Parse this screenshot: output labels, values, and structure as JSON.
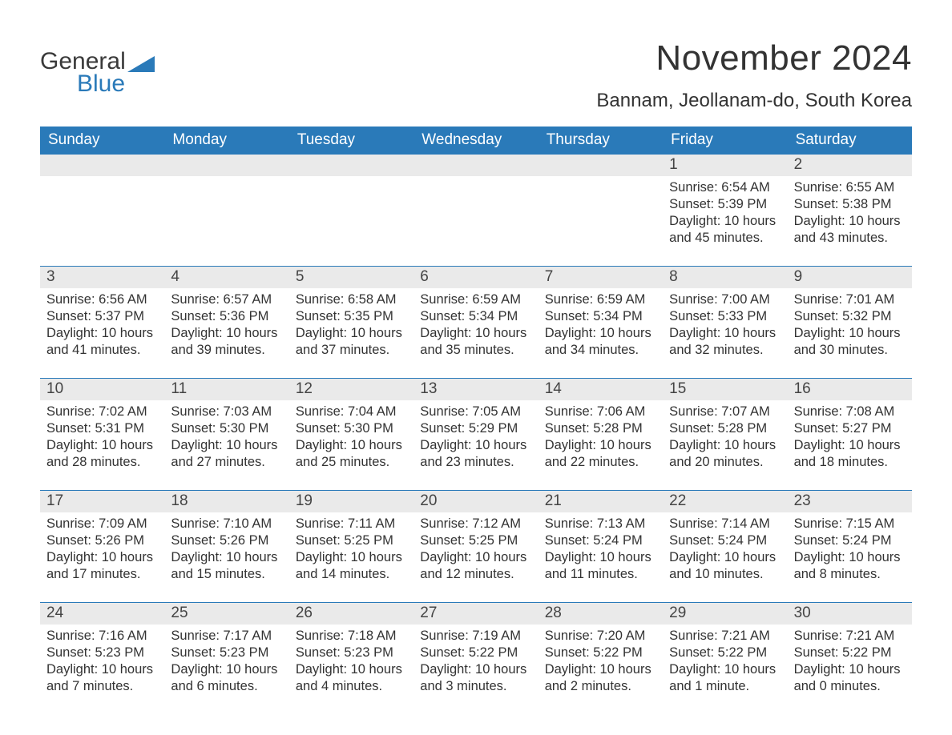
{
  "brand": {
    "text1": "General",
    "text2": "Blue",
    "accent_color": "#2a7ab9"
  },
  "title": "November 2024",
  "location": "Bannam, Jeollanam-do, South Korea",
  "colors": {
    "header_bg": "#2a7ab9",
    "header_text": "#ffffff",
    "daynum_bg": "#eaeaea",
    "row_divider": "#2a7ab9",
    "body_text": "#333333",
    "page_bg": "#ffffff"
  },
  "fonts": {
    "title_size_pt": 33,
    "location_size_pt": 18,
    "dow_size_pt": 14,
    "body_size_pt": 12
  },
  "days_of_week": [
    "Sunday",
    "Monday",
    "Tuesday",
    "Wednesday",
    "Thursday",
    "Friday",
    "Saturday"
  ],
  "weeks": [
    [
      {
        "n": "",
        "sunrise": "",
        "sunset": "",
        "daylight": ""
      },
      {
        "n": "",
        "sunrise": "",
        "sunset": "",
        "daylight": ""
      },
      {
        "n": "",
        "sunrise": "",
        "sunset": "",
        "daylight": ""
      },
      {
        "n": "",
        "sunrise": "",
        "sunset": "",
        "daylight": ""
      },
      {
        "n": "",
        "sunrise": "",
        "sunset": "",
        "daylight": ""
      },
      {
        "n": "1",
        "sunrise": "Sunrise: 6:54 AM",
        "sunset": "Sunset: 5:39 PM",
        "daylight": "Daylight: 10 hours and 45 minutes."
      },
      {
        "n": "2",
        "sunrise": "Sunrise: 6:55 AM",
        "sunset": "Sunset: 5:38 PM",
        "daylight": "Daylight: 10 hours and 43 minutes."
      }
    ],
    [
      {
        "n": "3",
        "sunrise": "Sunrise: 6:56 AM",
        "sunset": "Sunset: 5:37 PM",
        "daylight": "Daylight: 10 hours and 41 minutes."
      },
      {
        "n": "4",
        "sunrise": "Sunrise: 6:57 AM",
        "sunset": "Sunset: 5:36 PM",
        "daylight": "Daylight: 10 hours and 39 minutes."
      },
      {
        "n": "5",
        "sunrise": "Sunrise: 6:58 AM",
        "sunset": "Sunset: 5:35 PM",
        "daylight": "Daylight: 10 hours and 37 minutes."
      },
      {
        "n": "6",
        "sunrise": "Sunrise: 6:59 AM",
        "sunset": "Sunset: 5:34 PM",
        "daylight": "Daylight: 10 hours and 35 minutes."
      },
      {
        "n": "7",
        "sunrise": "Sunrise: 6:59 AM",
        "sunset": "Sunset: 5:34 PM",
        "daylight": "Daylight: 10 hours and 34 minutes."
      },
      {
        "n": "8",
        "sunrise": "Sunrise: 7:00 AM",
        "sunset": "Sunset: 5:33 PM",
        "daylight": "Daylight: 10 hours and 32 minutes."
      },
      {
        "n": "9",
        "sunrise": "Sunrise: 7:01 AM",
        "sunset": "Sunset: 5:32 PM",
        "daylight": "Daylight: 10 hours and 30 minutes."
      }
    ],
    [
      {
        "n": "10",
        "sunrise": "Sunrise: 7:02 AM",
        "sunset": "Sunset: 5:31 PM",
        "daylight": "Daylight: 10 hours and 28 minutes."
      },
      {
        "n": "11",
        "sunrise": "Sunrise: 7:03 AM",
        "sunset": "Sunset: 5:30 PM",
        "daylight": "Daylight: 10 hours and 27 minutes."
      },
      {
        "n": "12",
        "sunrise": "Sunrise: 7:04 AM",
        "sunset": "Sunset: 5:30 PM",
        "daylight": "Daylight: 10 hours and 25 minutes."
      },
      {
        "n": "13",
        "sunrise": "Sunrise: 7:05 AM",
        "sunset": "Sunset: 5:29 PM",
        "daylight": "Daylight: 10 hours and 23 minutes."
      },
      {
        "n": "14",
        "sunrise": "Sunrise: 7:06 AM",
        "sunset": "Sunset: 5:28 PM",
        "daylight": "Daylight: 10 hours and 22 minutes."
      },
      {
        "n": "15",
        "sunrise": "Sunrise: 7:07 AM",
        "sunset": "Sunset: 5:28 PM",
        "daylight": "Daylight: 10 hours and 20 minutes."
      },
      {
        "n": "16",
        "sunrise": "Sunrise: 7:08 AM",
        "sunset": "Sunset: 5:27 PM",
        "daylight": "Daylight: 10 hours and 18 minutes."
      }
    ],
    [
      {
        "n": "17",
        "sunrise": "Sunrise: 7:09 AM",
        "sunset": "Sunset: 5:26 PM",
        "daylight": "Daylight: 10 hours and 17 minutes."
      },
      {
        "n": "18",
        "sunrise": "Sunrise: 7:10 AM",
        "sunset": "Sunset: 5:26 PM",
        "daylight": "Daylight: 10 hours and 15 minutes."
      },
      {
        "n": "19",
        "sunrise": "Sunrise: 7:11 AM",
        "sunset": "Sunset: 5:25 PM",
        "daylight": "Daylight: 10 hours and 14 minutes."
      },
      {
        "n": "20",
        "sunrise": "Sunrise: 7:12 AM",
        "sunset": "Sunset: 5:25 PM",
        "daylight": "Daylight: 10 hours and 12 minutes."
      },
      {
        "n": "21",
        "sunrise": "Sunrise: 7:13 AM",
        "sunset": "Sunset: 5:24 PM",
        "daylight": "Daylight: 10 hours and 11 minutes."
      },
      {
        "n": "22",
        "sunrise": "Sunrise: 7:14 AM",
        "sunset": "Sunset: 5:24 PM",
        "daylight": "Daylight: 10 hours and 10 minutes."
      },
      {
        "n": "23",
        "sunrise": "Sunrise: 7:15 AM",
        "sunset": "Sunset: 5:24 PM",
        "daylight": "Daylight: 10 hours and 8 minutes."
      }
    ],
    [
      {
        "n": "24",
        "sunrise": "Sunrise: 7:16 AM",
        "sunset": "Sunset: 5:23 PM",
        "daylight": "Daylight: 10 hours and 7 minutes."
      },
      {
        "n": "25",
        "sunrise": "Sunrise: 7:17 AM",
        "sunset": "Sunset: 5:23 PM",
        "daylight": "Daylight: 10 hours and 6 minutes."
      },
      {
        "n": "26",
        "sunrise": "Sunrise: 7:18 AM",
        "sunset": "Sunset: 5:23 PM",
        "daylight": "Daylight: 10 hours and 4 minutes."
      },
      {
        "n": "27",
        "sunrise": "Sunrise: 7:19 AM",
        "sunset": "Sunset: 5:22 PM",
        "daylight": "Daylight: 10 hours and 3 minutes."
      },
      {
        "n": "28",
        "sunrise": "Sunrise: 7:20 AM",
        "sunset": "Sunset: 5:22 PM",
        "daylight": "Daylight: 10 hours and 2 minutes."
      },
      {
        "n": "29",
        "sunrise": "Sunrise: 7:21 AM",
        "sunset": "Sunset: 5:22 PM",
        "daylight": "Daylight: 10 hours and 1 minute."
      },
      {
        "n": "30",
        "sunrise": "Sunrise: 7:21 AM",
        "sunset": "Sunset: 5:22 PM",
        "daylight": "Daylight: 10 hours and 0 minutes."
      }
    ]
  ]
}
